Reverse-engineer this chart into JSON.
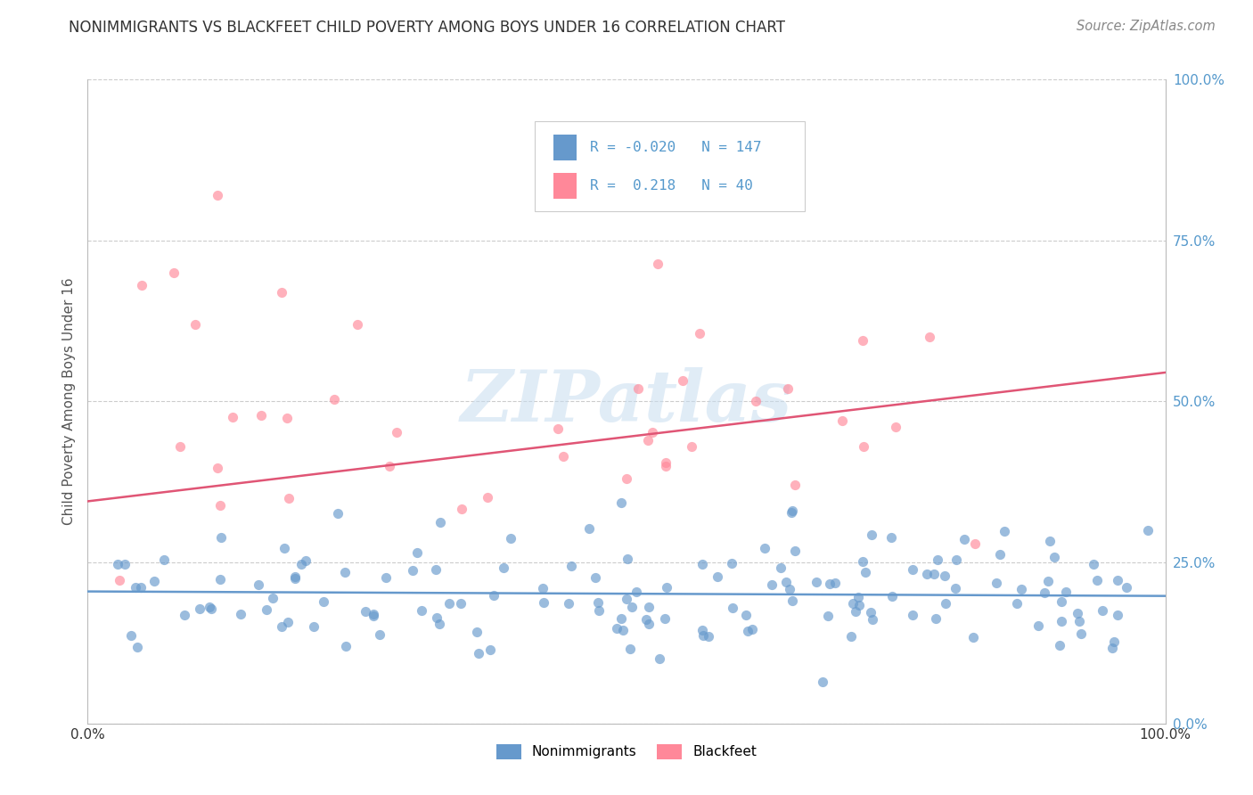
{
  "title": "NONIMMIGRANTS VS BLACKFEET CHILD POVERTY AMONG BOYS UNDER 16 CORRELATION CHART",
  "source": "Source: ZipAtlas.com",
  "ylabel": "Child Poverty Among Boys Under 16",
  "xlim": [
    0,
    1
  ],
  "ylim": [
    0,
    1
  ],
  "ytick_positions": [
    0.0,
    0.25,
    0.5,
    0.75,
    1.0
  ],
  "ytick_labels_right": [
    "0.0%",
    "25.0%",
    "50.0%",
    "75.0%",
    "100.0%"
  ],
  "xtick_positions": [
    0.0,
    1.0
  ],
  "xtick_labels": [
    "0.0%",
    "100.0%"
  ],
  "nonimmigrants_color": "#6699cc",
  "blackfeet_color": "#ff8899",
  "trendline_pink": "#e05575",
  "nonimmigrants_R": -0.02,
  "nonimmigrants_N": 147,
  "blackfeet_R": 0.218,
  "blackfeet_N": 40,
  "watermark_text": "ZIPatlas",
  "tick_label_color": "#5599cc",
  "background_color": "#ffffff",
  "nonimm_line_y0": 0.205,
  "nonimm_line_y1": 0.198,
  "blackfeet_line_y0": 0.345,
  "blackfeet_line_y1": 0.545
}
